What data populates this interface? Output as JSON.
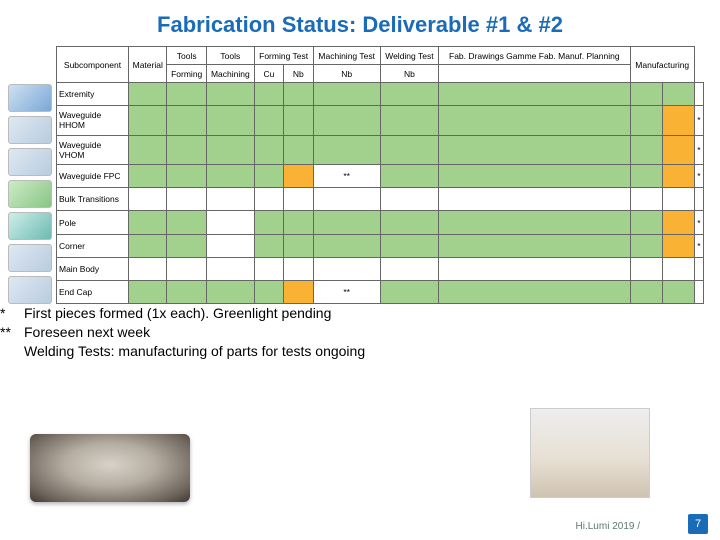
{
  "title": "Fabrication Status: Deliverable #1 & #2",
  "colors": {
    "green": "#a2d18e",
    "orange": "#f9b233",
    "red": "#e8614c",
    "white": "#ffffff"
  },
  "header": {
    "sub": "Subcomponent",
    "mat": "Material",
    "tools": "Tools",
    "formingTest": "Forming Test",
    "machTest": "Machining Test",
    "weldTest": "Welding Test",
    "fabDraw": "Fab. Drawings Gamme Fab. Manuf. Planning",
    "manuf": "Manufacturing",
    "forming": "Forming",
    "machining": "Machining",
    "cu": "Cu",
    "nb": "Nb"
  },
  "rows": [
    {
      "label": "Extremity",
      "cells": [
        "green",
        "green",
        "green",
        "green",
        "green",
        "green",
        "green",
        "green",
        "green",
        "green",
        ""
      ]
    },
    {
      "label": "Waveguide HHOM",
      "cells": [
        "green",
        "green",
        "green",
        "green",
        "green",
        "green",
        "green",
        "green",
        "green",
        "orange",
        "*"
      ]
    },
    {
      "label": "Waveguide VHOM",
      "cells": [
        "green",
        "green",
        "green",
        "green",
        "green",
        "green",
        "green",
        "green",
        "green",
        "orange",
        "*"
      ]
    },
    {
      "label": "Waveguide FPC",
      "cells": [
        "green",
        "green",
        "green",
        "green",
        "orange",
        "**",
        "green",
        "green",
        "green",
        "orange",
        "*"
      ]
    },
    {
      "label": "Bulk Transitions",
      "cells": [
        "",
        "",
        "",
        "",
        "",
        "",
        "",
        "",
        "",
        "",
        ""
      ]
    },
    {
      "label": "Pole",
      "cells": [
        "green",
        "green",
        "",
        "green",
        "green",
        "green",
        "green",
        "green",
        "green",
        "orange",
        "*"
      ]
    },
    {
      "label": "Corner",
      "cells": [
        "green",
        "green",
        "",
        "green",
        "green",
        "green",
        "green",
        "green",
        "green",
        "orange",
        "*"
      ]
    },
    {
      "label": "Main Body",
      "cells": [
        "",
        "",
        "",
        "",
        "",
        "",
        "",
        "",
        "",
        "",
        ""
      ]
    },
    {
      "label": "End Cap",
      "cells": [
        "green",
        "green",
        "green",
        "green",
        "orange",
        "**",
        "green",
        "green",
        "green",
        "green",
        ""
      ]
    }
  ],
  "notes": [
    {
      "mark": "*",
      "text": "First pieces formed (1x each). Greenlight pending"
    },
    {
      "mark": "**",
      "text": "Foreseen next week"
    },
    {
      "mark": "",
      "text": "Welding Tests: manufacturing of parts for tests ongoing"
    }
  ],
  "footer": "Hi.Lumi 2019 /",
  "pagenum": "7"
}
